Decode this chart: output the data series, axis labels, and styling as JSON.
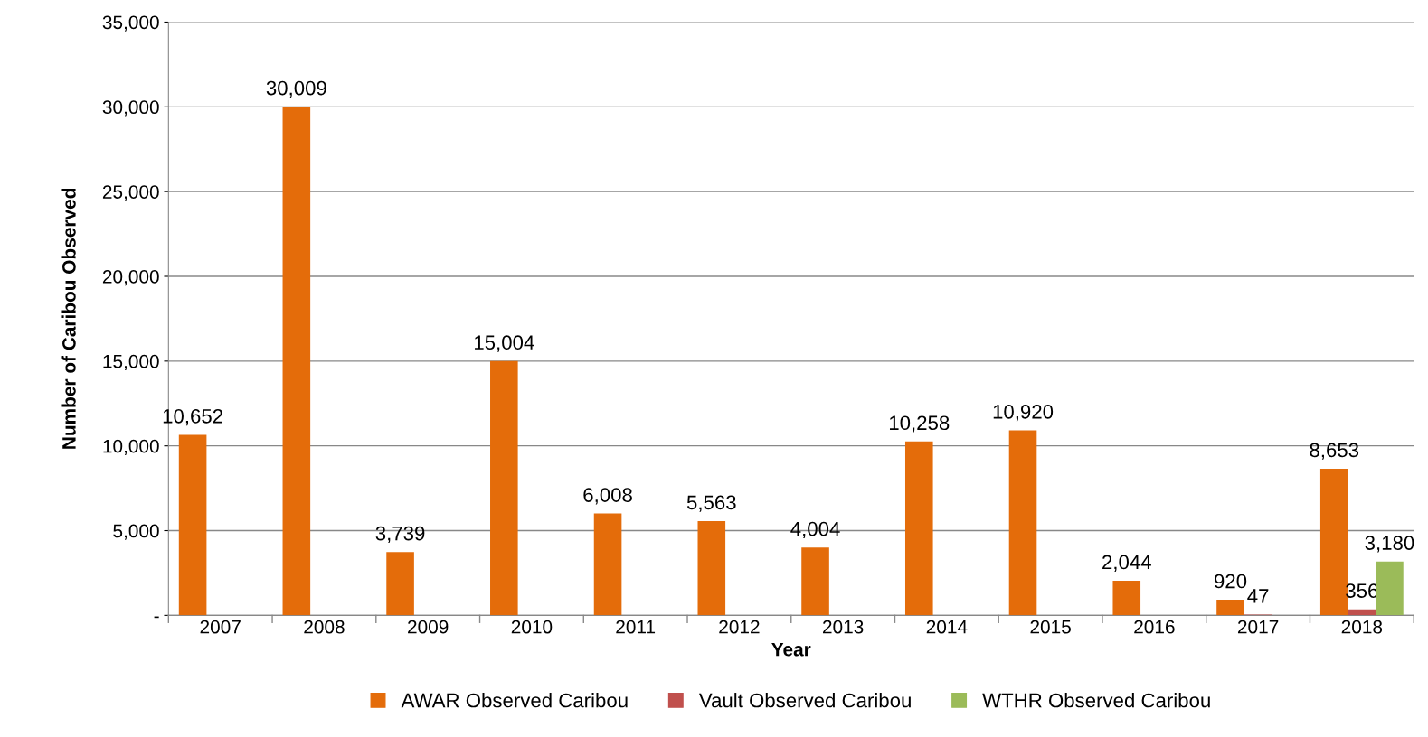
{
  "chart_data": {
    "type": "bar",
    "xlabel": "Year",
    "ylabel": "Number of Caribou Observed",
    "categories": [
      "2007",
      "2008",
      "2009",
      "2010",
      "2011",
      "2012",
      "2013",
      "2014",
      "2015",
      "2016",
      "2017",
      "2018"
    ],
    "series": [
      {
        "name": "AWAR Observed Caribou",
        "color": "#e46c0a",
        "values": [
          10652,
          30009,
          3739,
          15004,
          6008,
          5563,
          4004,
          10258,
          10920,
          2044,
          920,
          8653
        ],
        "value_labels": [
          "10,652",
          "30,009",
          "3,739",
          "15,004",
          "6,008",
          "5,563",
          "4,004",
          "10,258",
          "10,920",
          "2,044",
          "920",
          "8,653"
        ]
      },
      {
        "name": "Vault Observed Caribou",
        "color": "#c0504d",
        "values": [
          null,
          null,
          null,
          null,
          null,
          null,
          null,
          null,
          null,
          null,
          47,
          356
        ],
        "value_labels": [
          null,
          null,
          null,
          null,
          null,
          null,
          null,
          null,
          null,
          null,
          "47",
          "356"
        ]
      },
      {
        "name": "WTHR Observed Caribou",
        "color": "#9bbb59",
        "values": [
          null,
          null,
          null,
          null,
          null,
          null,
          null,
          null,
          null,
          null,
          null,
          3180
        ],
        "value_labels": [
          null,
          null,
          null,
          null,
          null,
          null,
          null,
          null,
          null,
          null,
          null,
          "3,180"
        ]
      }
    ],
    "ylim": [
      0,
      35000
    ],
    "yticks": [
      {
        "value": 0,
        "label": "-"
      },
      {
        "value": 5000,
        "label": "5,000"
      },
      {
        "value": 10000,
        "label": "10,000"
      },
      {
        "value": 15000,
        "label": "15,000"
      },
      {
        "value": 20000,
        "label": "20,000"
      },
      {
        "value": 25000,
        "label": "25,000"
      },
      {
        "value": 30000,
        "label": "30,000"
      },
      {
        "value": 35000,
        "label": "35,000"
      }
    ],
    "grid": "y",
    "legend": "bottom"
  }
}
